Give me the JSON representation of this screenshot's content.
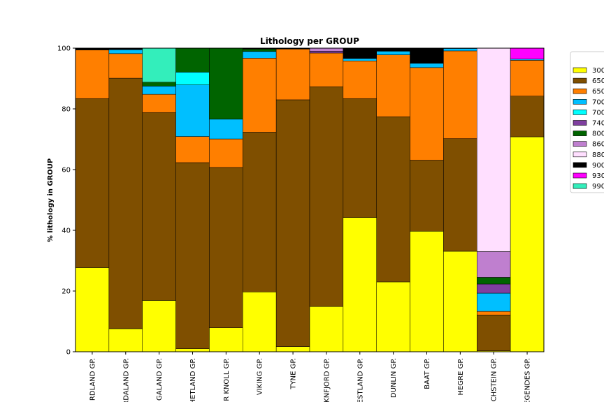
{
  "chart_data": {
    "type": "bar",
    "stacked": true,
    "title": "Lithology per GROUP",
    "ylabel": "% lithology in GROUP",
    "xlabel": "",
    "ylim": [
      0,
      100
    ],
    "yticks": [
      0,
      20,
      40,
      60,
      80,
      100
    ],
    "grid": false,
    "legend_position": "right, outside plot",
    "categories": [
      "NORDLAND GP.",
      "HORDALAND GP.",
      "ROGALAND GP.",
      "SHETLAND GP.",
      "CROMER KNOLL GP.",
      "VIKING GP.",
      "TYNE GP.",
      "BOKNFJORD GP.",
      "VESTLAND GP.",
      "DUNLIN GP.",
      "BAAT GP.",
      "HEGRE GP.",
      "ZECHSTEIN GP.",
      "ROTLIEGENDES GP."
    ],
    "category_labels_visible": [
      "RDLAND GP.",
      "RDALAND GP.",
      "GALAND GP.",
      "HETLAND GP.",
      "R KNOLL GP.",
      "VIKING GP.",
      "TYNE GP.",
      "KNFJORD GP.",
      "ESTLAND GP.",
      "DUNLIN GP.",
      "BAAT GP.",
      "HEGRE GP.",
      "CHSTEIN GP.",
      "EGENDES GP."
    ],
    "series": [
      {
        "name": "300",
        "color": "#ffff00",
        "values": [
          27.7,
          7.6,
          16.9,
          1.0,
          7.9,
          19.7,
          1.7,
          14.9,
          44.2,
          23.0,
          39.7,
          33.1,
          0.3,
          70.8
        ]
      },
      {
        "name": "650",
        "color": "#7f4f00",
        "values": [
          55.7,
          82.5,
          61.9,
          61.3,
          52.8,
          52.6,
          81.3,
          72.4,
          39.2,
          54.4,
          23.4,
          37.1,
          11.8,
          13.4
        ]
      },
      {
        "name": "650",
        "color": "#ff7f00",
        "values": [
          16.0,
          8.1,
          6.0,
          8.6,
          9.4,
          24.4,
          16.7,
          11.1,
          12.4,
          20.4,
          30.5,
          28.9,
          1.2,
          11.8
        ]
      },
      {
        "name": "700",
        "color": "#00bfff",
        "values": [
          0,
          1.3,
          2.7,
          17.0,
          6.5,
          2.2,
          0,
          0,
          0.8,
          1.2,
          1.4,
          0.8,
          6.0,
          0.4
        ]
      },
      {
        "name": "700",
        "color": "#00ffff",
        "values": [
          0,
          0,
          0,
          4.2,
          0,
          0,
          0,
          0,
          0,
          0,
          0,
          0,
          0,
          0
        ]
      },
      {
        "name": "740",
        "color": "#7f3f9f",
        "values": [
          0,
          0,
          0,
          0,
          0,
          0,
          0,
          0.6,
          0,
          0,
          0,
          0,
          3.0,
          0
        ]
      },
      {
        "name": "800",
        "color": "#006400",
        "values": [
          0,
          0,
          1.3,
          7.9,
          23.4,
          0.8,
          0,
          0,
          0,
          0,
          0,
          0,
          2.2,
          0
        ]
      },
      {
        "name": "860",
        "color": "#bf7fcf",
        "values": [
          0,
          0,
          0,
          0,
          0,
          0,
          0,
          1.0,
          0,
          0,
          0,
          0,
          8.5,
          0
        ]
      },
      {
        "name": "880",
        "color": "#ffdfff",
        "values": [
          0,
          0,
          0,
          0,
          0,
          0,
          0,
          0,
          0,
          0,
          0,
          0,
          67.0,
          0
        ]
      },
      {
        "name": "900",
        "color": "#000000",
        "values": [
          0.6,
          0.5,
          0,
          0,
          0,
          0.3,
          0.3,
          0,
          3.4,
          1.0,
          5.0,
          0.1,
          0,
          0
        ]
      },
      {
        "name": "930",
        "color": "#ff00ff",
        "values": [
          0,
          0,
          0,
          0,
          0,
          0,
          0,
          0,
          0,
          0,
          0,
          0,
          0,
          3.6
        ]
      },
      {
        "name": "990",
        "color": "#33eebb",
        "values": [
          0,
          0,
          11.2,
          0,
          0,
          0,
          0,
          0,
          0,
          0,
          0,
          0,
          0,
          0
        ]
      }
    ]
  }
}
